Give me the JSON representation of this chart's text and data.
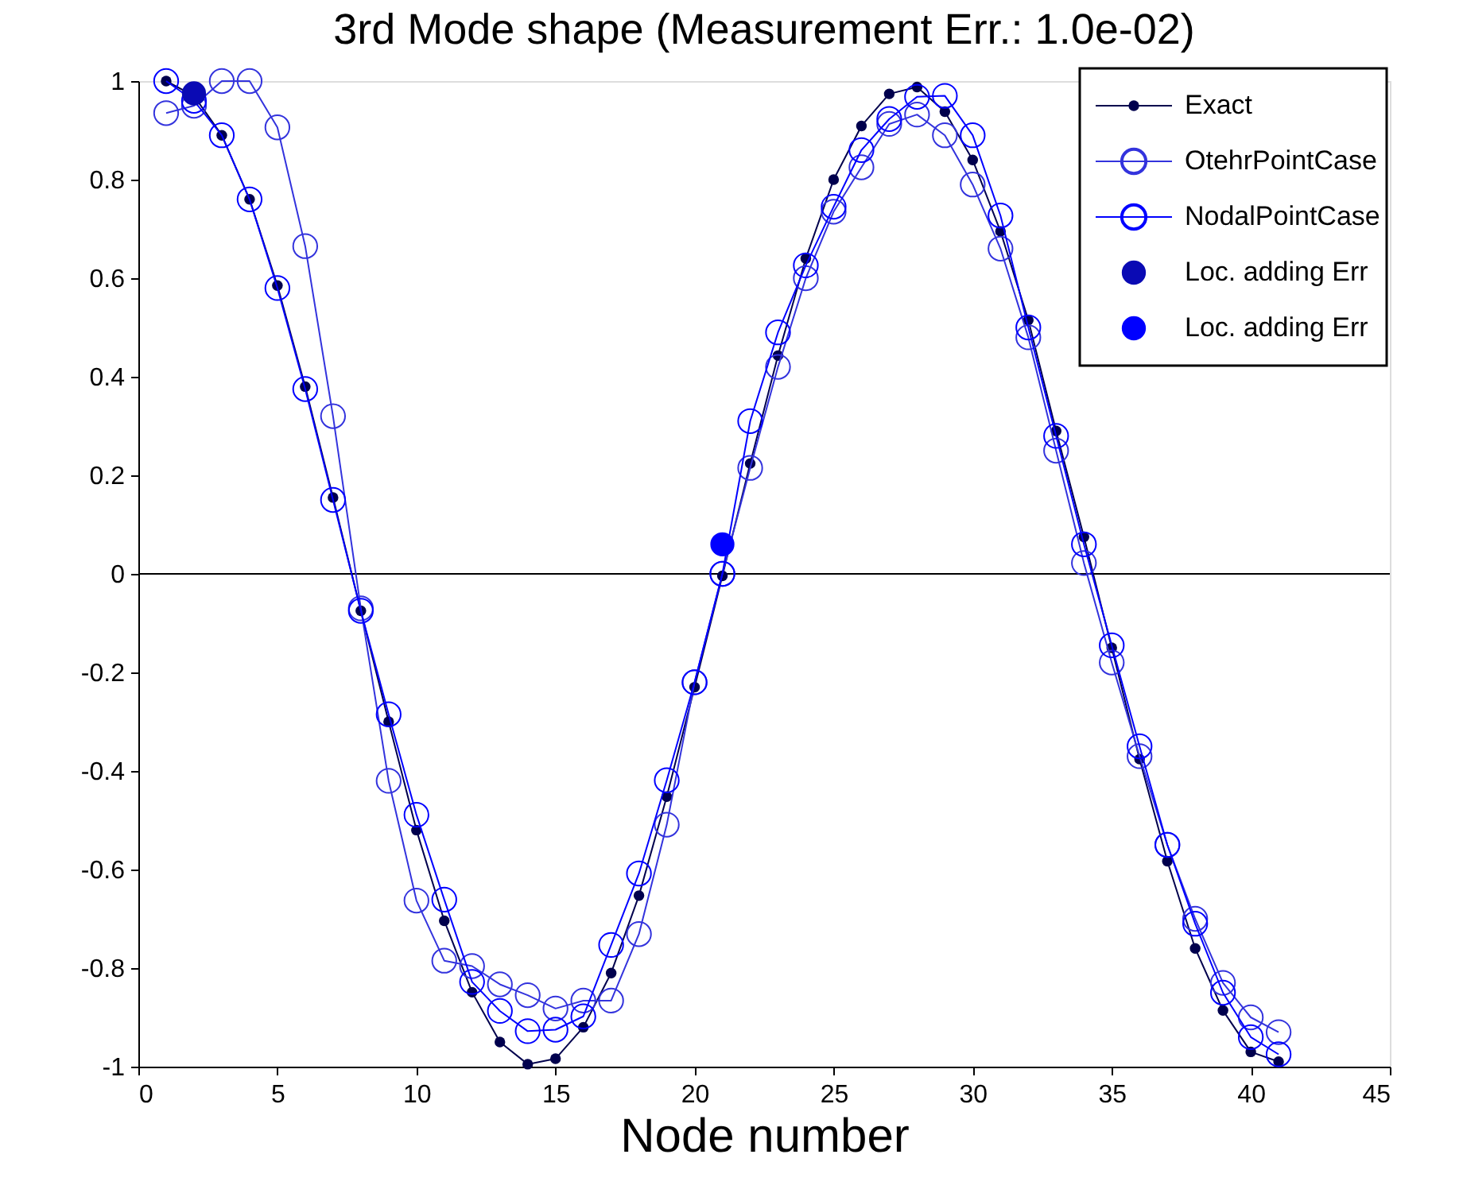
{
  "chart_data": {
    "type": "line",
    "title": "3rd Mode shape (Measurement Err.: 1.0e-02)",
    "xlabel": "Node number",
    "x": [
      1,
      2,
      3,
      4,
      5,
      6,
      7,
      8,
      9,
      10,
      11,
      12,
      13,
      14,
      15,
      16,
      17,
      18,
      19,
      20,
      21,
      22,
      23,
      24,
      25,
      26,
      27,
      28,
      29,
      30,
      31,
      32,
      33,
      34,
      35,
      36,
      37,
      38,
      39,
      40,
      41
    ],
    "series": [
      {
        "name": "Exact",
        "color": "#00004d",
        "marker": "circle",
        "values": [
          1.0,
          0.97,
          0.89,
          0.76,
          0.585,
          0.38,
          0.155,
          -0.075,
          -0.3,
          -0.52,
          -0.704,
          -0.849,
          -0.95,
          -0.995,
          -0.984,
          -0.92,
          -0.81,
          -0.653,
          -0.452,
          -0.23,
          -0.004,
          0.224,
          0.443,
          0.64,
          0.8,
          0.909,
          0.974,
          0.988,
          0.938,
          0.84,
          0.695,
          0.515,
          0.29,
          0.075,
          -0.15,
          -0.376,
          -0.583,
          -0.76,
          -0.886,
          -0.97,
          -0.99
        ]
      },
      {
        "name": "OtehrPointCase",
        "color": "#3333dd",
        "marker": "circle",
        "values": [
          0.935,
          0.95,
          1.0,
          1.0,
          0.906,
          0.665,
          0.32,
          -0.07,
          -0.42,
          -0.663,
          -0.785,
          -0.796,
          -0.833,
          -0.855,
          -0.882,
          -0.866,
          -0.866,
          -0.731,
          -0.509,
          -0.22,
          0.0,
          0.215,
          0.42,
          0.6,
          0.735,
          0.825,
          0.913,
          0.932,
          0.89,
          0.79,
          0.66,
          0.48,
          0.25,
          0.022,
          -0.18,
          -0.37,
          -0.55,
          -0.7,
          -0.83,
          -0.9,
          -0.93
        ]
      },
      {
        "name": "NodalPointCase",
        "color": "#0000ff",
        "marker": "circle",
        "values": [
          1.0,
          0.96,
          0.89,
          0.76,
          0.58,
          0.375,
          0.15,
          -0.075,
          -0.285,
          -0.489,
          -0.661,
          -0.828,
          -0.887,
          -0.928,
          -0.925,
          -0.898,
          -0.753,
          -0.608,
          -0.419,
          -0.22,
          0.0,
          0.31,
          0.49,
          0.626,
          0.745,
          0.86,
          0.923,
          0.968,
          0.97,
          0.89,
          0.727,
          0.5,
          0.28,
          0.06,
          -0.145,
          -0.35,
          -0.55,
          -0.71,
          -0.85,
          -0.94,
          -0.975
        ]
      },
      {
        "name": "Loc. adding Err",
        "type": "scatter",
        "color": "#0a0ab4",
        "marker": "circle",
        "x": [
          2
        ],
        "values": [
          0.975
        ]
      },
      {
        "name": "Loc. adding Err",
        "type": "scatter",
        "color": "#0000ff",
        "marker": "circle",
        "x": [
          21
        ],
        "values": [
          0.06
        ]
      }
    ],
    "ref_lines": [
      {
        "axis": "y",
        "value": 0,
        "color": "#000000"
      }
    ],
    "xlim": [
      0,
      45
    ],
    "xticks": [
      0,
      5,
      10,
      15,
      20,
      25,
      30,
      35,
      40,
      45
    ],
    "ylim": [
      -1,
      1
    ],
    "yticks": [
      -1,
      -0.8,
      -0.6,
      -0.4,
      -0.2,
      0,
      0.2,
      0.4,
      0.6,
      0.8,
      1
    ],
    "grid": false,
    "legend": "top right"
  }
}
